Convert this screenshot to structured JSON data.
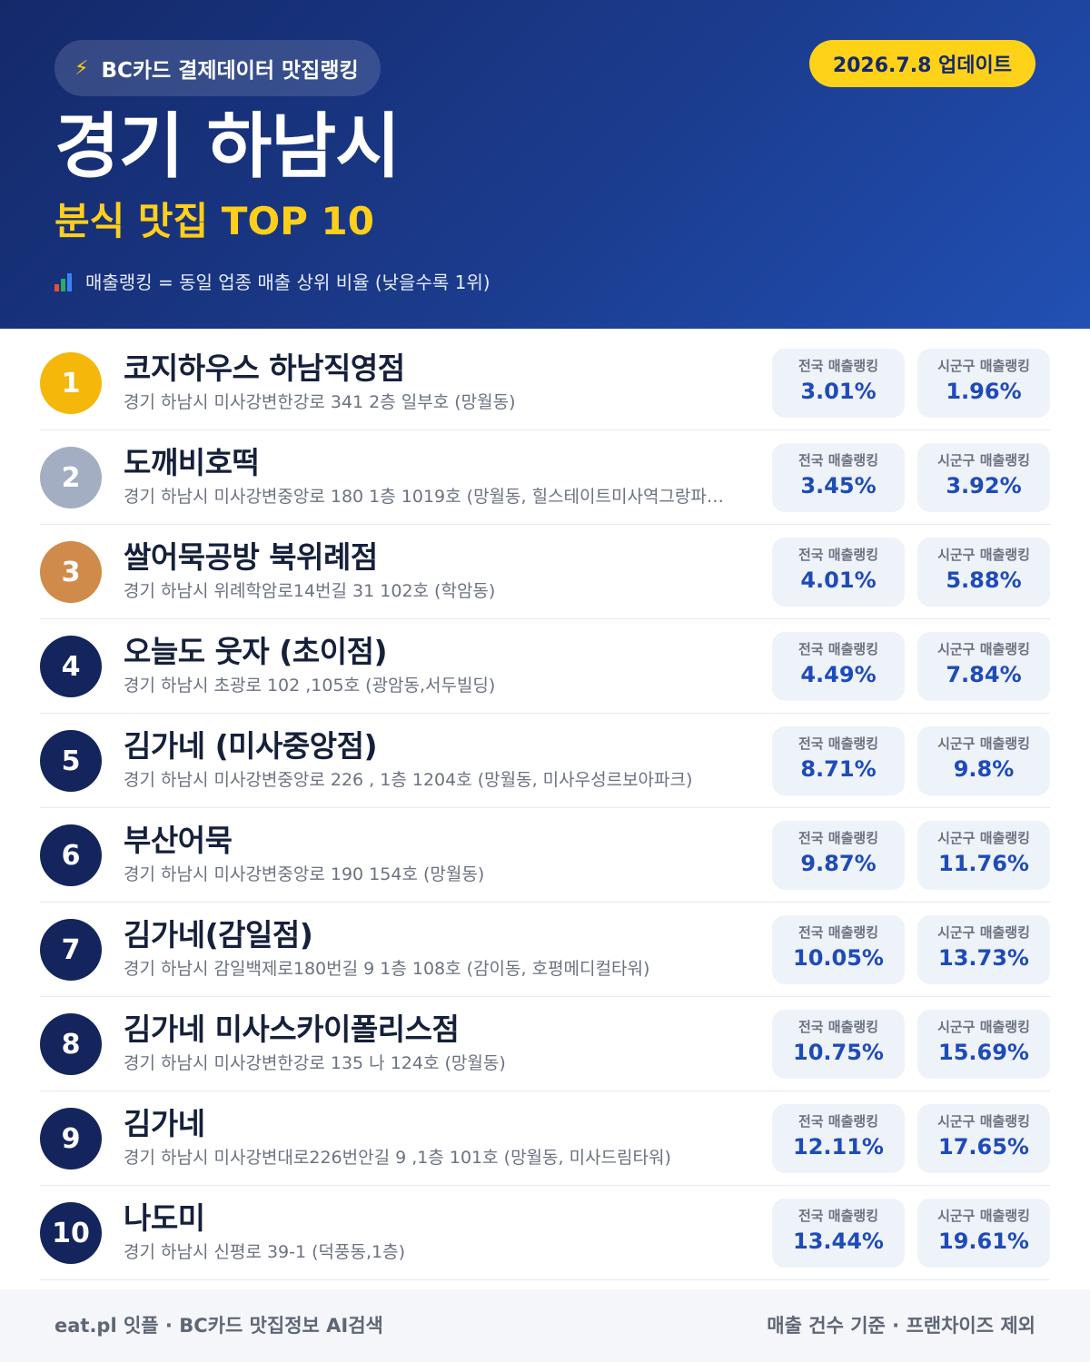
{
  "header": {
    "brand": "BC카드 결제데이터 맛집랭킹",
    "brand_icon": "lightning-bolt-icon",
    "update": "2026.7.8 업데이트",
    "city": "경기 하남시",
    "category": "분식 맛집 TOP 10",
    "legend": "매출랭킹 = 동일 업종 매출 상위 비율 (낮을수록 1위)",
    "legend_icon": "bar-chart-icon"
  },
  "metric_labels": {
    "national": "전국 매출랭킹",
    "local": "시군구 매출랭킹"
  },
  "colors": {
    "gold": "#f4b70a",
    "silver": "#a3aec2",
    "bronze": "#d08b4a",
    "navy": "#14245c",
    "accent_yellow": "#ffd21a",
    "metric_blue": "#1e4bb8"
  },
  "items": [
    {
      "rank": "1",
      "name": "코지하우스 하남직영점",
      "address": "경기 하남시 미사강변한강로 341 2층 일부호 (망월동)",
      "national": "3.01%",
      "local": "1.96%",
      "badge_color": "#f4b70a"
    },
    {
      "rank": "2",
      "name": "도깨비호떡",
      "address": "경기 하남시 미사강변중앙로 180 1층 1019호 (망월동, 힐스테이트미사역그랑파…",
      "national": "3.45%",
      "local": "3.92%",
      "badge_color": "#a3aec2"
    },
    {
      "rank": "3",
      "name": "쌀어묵공방 북위례점",
      "address": "경기 하남시 위례학암로14번길 31 102호 (학암동)",
      "national": "4.01%",
      "local": "5.88%",
      "badge_color": "#d08b4a"
    },
    {
      "rank": "4",
      "name": "오늘도 웃자 (초이점)",
      "address": "경기 하남시 초광로 102 ,105호 (광암동,서두빌딩)",
      "national": "4.49%",
      "local": "7.84%",
      "badge_color": "#14245c"
    },
    {
      "rank": "5",
      "name": "김가네 (미사중앙점)",
      "address": "경기 하남시 미사강변중앙로 226 , 1층 1204호 (망월동, 미사우성르보아파크)",
      "national": "8.71%",
      "local": "9.8%",
      "badge_color": "#14245c"
    },
    {
      "rank": "6",
      "name": "부산어묵",
      "address": "경기 하남시 미사강변중앙로 190 154호 (망월동)",
      "national": "9.87%",
      "local": "11.76%",
      "badge_color": "#14245c"
    },
    {
      "rank": "7",
      "name": "김가네(감일점)",
      "address": "경기 하남시 감일백제로180번길 9 1층 108호 (감이동, 호평메디컬타워)",
      "national": "10.05%",
      "local": "13.73%",
      "badge_color": "#14245c"
    },
    {
      "rank": "8",
      "name": "김가네 미사스카이폴리스점",
      "address": "경기 하남시 미사강변한강로 135 나 124호 (망월동)",
      "national": "10.75%",
      "local": "15.69%",
      "badge_color": "#14245c"
    },
    {
      "rank": "9",
      "name": "김가네",
      "address": "경기 하남시 미사강변대로226번안길 9 ,1층 101호 (망월동, 미사드림타워)",
      "national": "12.11%",
      "local": "17.65%",
      "badge_color": "#14245c"
    },
    {
      "rank": "10",
      "name": "나도미",
      "address": "경기 하남시 신평로 39-1 (덕풍동,1층)",
      "national": "13.44%",
      "local": "19.61%",
      "badge_color": "#14245c"
    }
  ],
  "footer": {
    "left": "eat.pl 잇플 · BC카드 맛집정보 AI검색",
    "right": "매출 건수 기준 · 프랜차이즈 제외"
  }
}
